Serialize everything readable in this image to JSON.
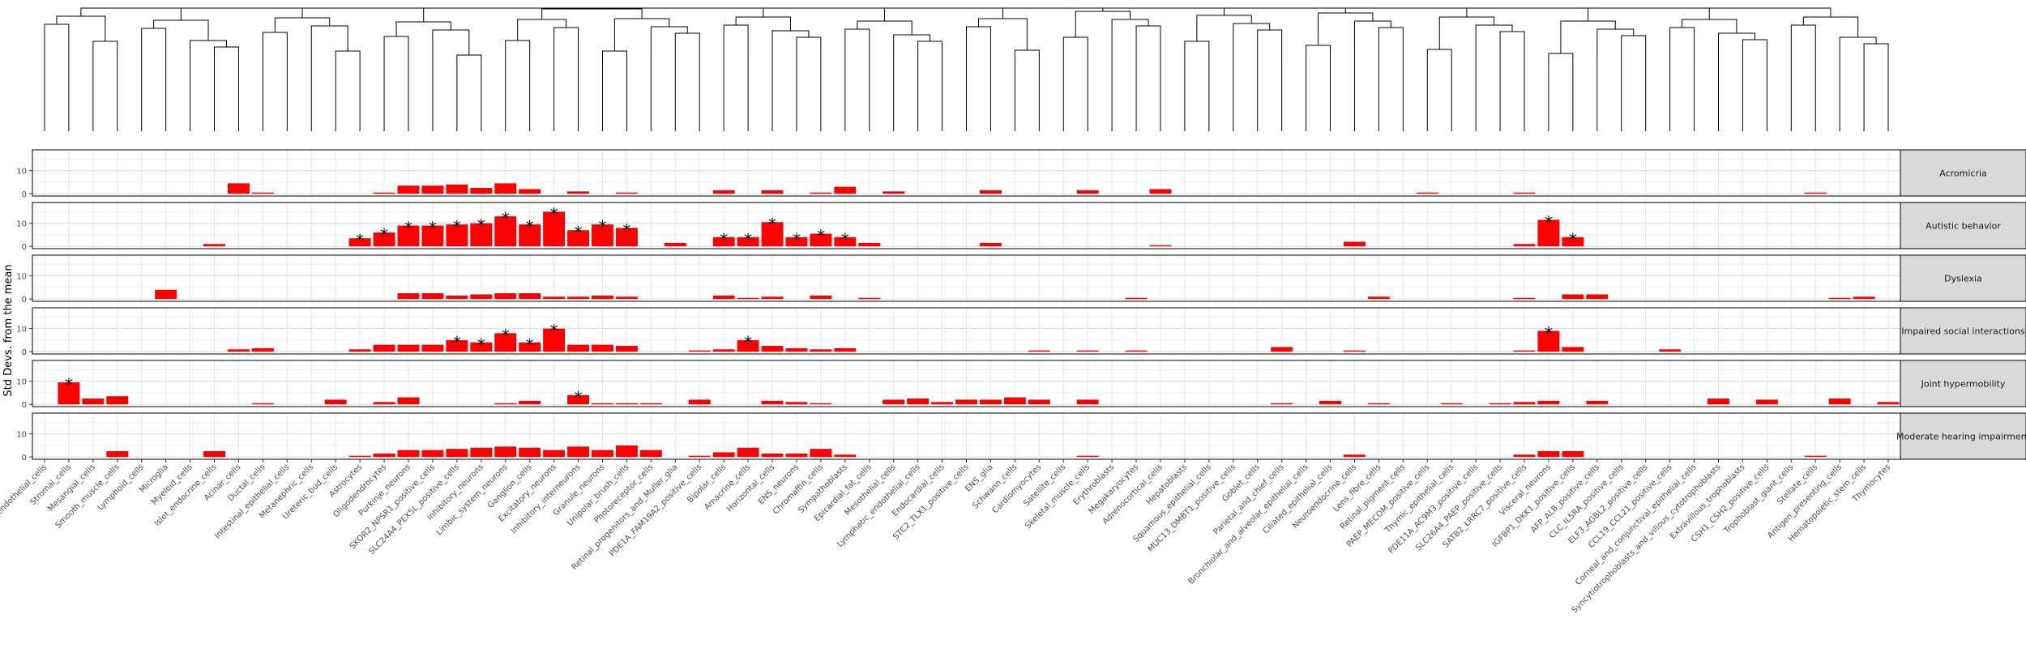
{
  "chart_data": {
    "type": "bar",
    "ylabel": "Std Devs. from the mean",
    "y_ticks": [
      0,
      10
    ],
    "ylim": [
      -1,
      19
    ],
    "bar_color": "#ff0000",
    "grid": true,
    "dendrogram": "hierarchical clustering tree above panels",
    "categories": [
      "Lymphatic_endothelial_cells",
      "Stromal_cells",
      "Mesangial_cells",
      "Smooth_muscle_cells",
      "Lymphoid_cells",
      "Microglia",
      "Myeloid_cells",
      "Islet_endocrine_cells",
      "Acinar_cells",
      "Ductal_cells",
      "Intestinal_epithelial_cells",
      "Metanephric_cells",
      "Ureteric_bud_cells",
      "Astrocytes",
      "Oligodendrocytes",
      "Purkinje_neurons",
      "SKOR2_NPSR1_positive_cells",
      "SLC24A4_PEX5L_positive_cells",
      "Inhibitory_neurons",
      "Limbic_system_neurons",
      "Ganglion_cells",
      "Excitatory_neurons",
      "Inhibitory_interneurons",
      "Granule_neurons",
      "Unipolar_brush_cells",
      "Photoreceptor_cells",
      "Retinal_progenitors_and_Muller_glia",
      "PDE1A_FAM19A2_positive_cells",
      "Bipolar_cells",
      "Amacrine_cells",
      "Horizontal_cells",
      "ENS_neurons",
      "Chromaffin_cells",
      "Sympathoblasts",
      "Epicardial_fat_cells",
      "Mesothelial_cells",
      "Lymphatic_endothelial_cells",
      "Endocardial_cells",
      "STC2_TLX1_positive_cells",
      "ENS_glia",
      "Schwann_cells",
      "Cardiomyocytes",
      "Satellite_cells",
      "Skeletal_muscle_cells",
      "Erythroblasts",
      "Megakaryocytes",
      "Adrenocortical_cells",
      "Hepatoblasts",
      "Squamous_epithelial_cells",
      "MUC13_DMBT1_positive_cells",
      "Goblet_cells",
      "Parietal_and_chief_cells",
      "Bronchiolar_and_alveolar_epithelial_cells",
      "Ciliated_epithelial_cells",
      "Neuroendocrine_cells",
      "Lens_fibre_cells",
      "Retinal_pigment_cells",
      "PAEP_MECOM_positive_cells",
      "Thymic_epithelial_cells",
      "PDE11A_AC9M3_positive_cells",
      "SLC26A4_PAEP_positive_cells",
      "SATB2_LRRC7_positive_cells",
      "Visceral_neurons",
      "IGFBP1_DKK1_positive_cells",
      "AFP_ALB_positive_cells",
      "CLC_IL5RA_positive_cells",
      "ELF3_AGBL2_positive_cells",
      "CCL19_CCL21_positive_cells",
      "Corneal_and_conjunctival_epithelial_cells",
      "Syncytiotrophoblasts_and_villous_cytotrophoblasts",
      "Extravillous_trophoblasts",
      "CSH1_CSH2_positive_cells",
      "Trophoblast_giant_cells",
      "Stellate_cells",
      "Antigen_presenting_cells",
      "Hematopoietic_stem_cells",
      "Thymocytes"
    ],
    "panels": [
      {
        "name": "Acromicria",
        "values": [
          0,
          0,
          0,
          0,
          0,
          0,
          0,
          0,
          4.5,
          0.5,
          0,
          0,
          0,
          0,
          0.5,
          3.5,
          3.5,
          4,
          2.5,
          4.5,
          2,
          0,
          1,
          0,
          0.5,
          0,
          0,
          0,
          1.5,
          0,
          1.5,
          0,
          0.5,
          3,
          0,
          1,
          0,
          0,
          0,
          1.5,
          0,
          0,
          0,
          1.5,
          0,
          0,
          2,
          0,
          0,
          0,
          0,
          0,
          0,
          0,
          0,
          0,
          0,
          0.5,
          0,
          0,
          0,
          0.5,
          0,
          0,
          0,
          0,
          0,
          0,
          0,
          0,
          0,
          0,
          0,
          0.5,
          0,
          0,
          0
        ],
        "stars": []
      },
      {
        "name": "Autistic behavior",
        "values": [
          0,
          0,
          0,
          0,
          0,
          0,
          0,
          1,
          0,
          0,
          0,
          0,
          0,
          3.5,
          6,
          9,
          9,
          9.5,
          10,
          13,
          9.5,
          15,
          7,
          9.5,
          8,
          0,
          1.5,
          0,
          4,
          4,
          10.5,
          4,
          5.5,
          4,
          1.5,
          0,
          0,
          0,
          0,
          1.5,
          0,
          0,
          0,
          0,
          0,
          0,
          0.5,
          0,
          0,
          0,
          0,
          0,
          0,
          0,
          2,
          0,
          0,
          0,
          0,
          0,
          0,
          1,
          11.5,
          4,
          0,
          0,
          0,
          0,
          0,
          0,
          0,
          0,
          0,
          0,
          0,
          0,
          0
        ],
        "stars": [
          13,
          14,
          15,
          16,
          17,
          18,
          19,
          20,
          21,
          22,
          23,
          24,
          28,
          29,
          30,
          31,
          32,
          33,
          62,
          63
        ]
      },
      {
        "name": "Dyslexia",
        "values": [
          0,
          0,
          0,
          0,
          0,
          4,
          0,
          0,
          0,
          0,
          0,
          0,
          0,
          0,
          0,
          2.5,
          2.5,
          1.5,
          2,
          2.5,
          2.5,
          1,
          1,
          1.5,
          1,
          0,
          0,
          0,
          1.5,
          0.5,
          1,
          0,
          1.5,
          0,
          0.5,
          0,
          0,
          0,
          0,
          0,
          0,
          0,
          0,
          0,
          0,
          0.5,
          0,
          0,
          0,
          0,
          0,
          0,
          0,
          0,
          0,
          1,
          0,
          0,
          0,
          0,
          0,
          0.5,
          0,
          2,
          2,
          0,
          0,
          0,
          0,
          0,
          0,
          0,
          0,
          0,
          0.5,
          1,
          0
        ],
        "stars": []
      },
      {
        "name": "Impaired social interactions",
        "values": [
          0,
          0,
          0,
          0,
          0,
          0,
          0,
          0,
          1,
          1.5,
          0,
          0,
          0,
          1,
          3,
          3,
          3,
          5,
          4,
          8,
          4,
          10,
          3,
          3,
          2.5,
          0,
          0,
          0.5,
          1,
          5,
          2.5,
          1.5,
          1,
          1.5,
          0,
          0,
          0,
          0,
          0,
          0,
          0,
          0.5,
          0,
          0.5,
          0,
          0.5,
          0,
          0,
          0,
          0,
          0,
          2,
          0,
          0,
          0.5,
          0,
          0,
          0,
          0,
          0,
          0,
          0.5,
          9,
          2,
          0,
          0,
          0,
          1,
          0,
          0,
          0,
          0,
          0,
          0,
          0,
          0,
          0
        ],
        "stars": [
          17,
          18,
          19,
          20,
          21,
          29,
          62
        ]
      },
      {
        "name": "Joint hypermobility",
        "values": [
          0,
          9.5,
          2.5,
          3.5,
          0,
          0,
          0,
          0,
          0,
          0.5,
          0,
          0,
          2,
          0,
          1,
          3,
          0,
          0,
          0,
          0.5,
          1.5,
          0,
          4,
          0.5,
          0.5,
          0.5,
          0,
          2,
          0,
          0,
          1.5,
          1,
          0.5,
          0,
          0,
          2,
          2.5,
          1,
          2,
          2,
          3,
          2,
          0,
          2,
          0,
          0,
          0,
          0,
          0,
          0,
          0,
          0.5,
          0,
          1.5,
          0,
          0.5,
          0,
          0,
          0.5,
          0,
          0.5,
          1,
          1.5,
          0,
          1.5,
          0,
          0,
          0,
          0,
          2.5,
          0,
          2,
          0,
          0,
          2.5,
          0,
          1
        ],
        "stars": [
          1,
          22
        ]
      },
      {
        "name": "Moderate hearing impairment",
        "values": [
          0,
          0,
          0,
          2.5,
          0,
          0,
          0,
          2.5,
          0,
          0,
          0,
          0,
          0,
          0.5,
          1.5,
          3,
          3,
          3.5,
          4,
          4.5,
          4,
          3,
          4.5,
          3,
          5,
          3,
          0,
          0.5,
          2,
          4,
          1.5,
          1.5,
          3.5,
          1,
          0,
          0,
          0,
          0,
          0,
          0,
          0,
          0,
          0,
          0.5,
          0,
          0,
          0,
          0,
          0,
          0,
          0,
          0,
          0,
          0,
          1,
          0,
          0,
          0,
          0,
          0,
          0,
          1,
          2.5,
          2.5,
          0,
          0,
          0,
          0,
          0,
          0,
          0,
          0,
          0,
          0.5,
          0,
          0,
          0
        ],
        "stars": []
      }
    ]
  }
}
